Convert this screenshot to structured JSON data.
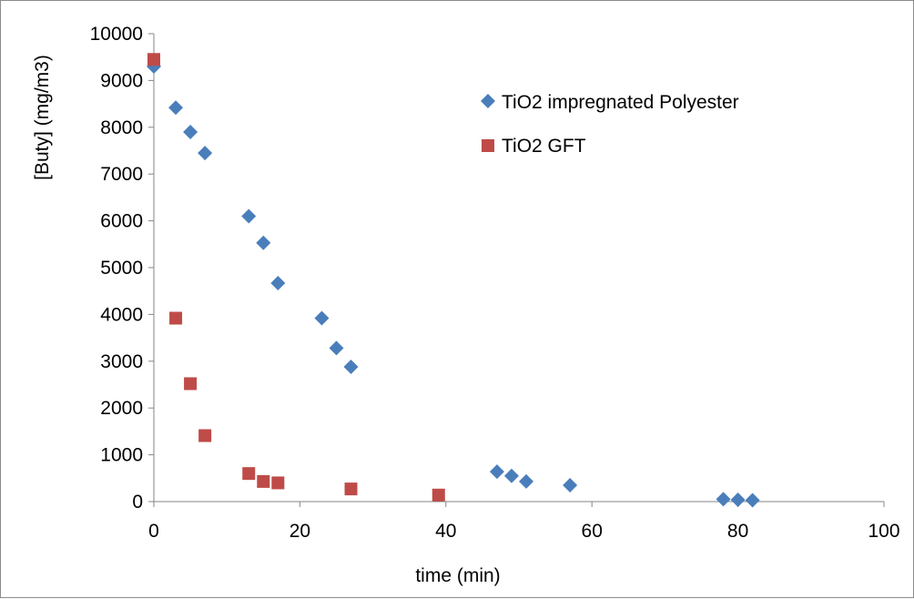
{
  "chart_data": {
    "type": "scatter",
    "title": "",
    "xlabel": "time (min)",
    "ylabel": "[Buty] (mg/m3)",
    "xlim": [
      0,
      100
    ],
    "ylim": [
      0,
      10000
    ],
    "x_ticks": [
      "0",
      "20",
      "40",
      "60",
      "80",
      "100"
    ],
    "y_ticks": [
      "0",
      "1000",
      "2000",
      "3000",
      "4000",
      "5000",
      "6000",
      "7000",
      "8000",
      "9000",
      "10000"
    ],
    "grid": false,
    "legend_position": "top-right",
    "series": [
      {
        "name": "TiO2 impregnated Polyester",
        "marker": "diamond",
        "color": "#4a7ebb",
        "points": [
          {
            "x": 0,
            "y": 9300
          },
          {
            "x": 3,
            "y": 8420
          },
          {
            "x": 5,
            "y": 7900
          },
          {
            "x": 7,
            "y": 7450
          },
          {
            "x": 13,
            "y": 6100
          },
          {
            "x": 15,
            "y": 5530
          },
          {
            "x": 17,
            "y": 4670
          },
          {
            "x": 23,
            "y": 3920
          },
          {
            "x": 25,
            "y": 3280
          },
          {
            "x": 27,
            "y": 2880
          },
          {
            "x": 47,
            "y": 640
          },
          {
            "x": 49,
            "y": 550
          },
          {
            "x": 51,
            "y": 430
          },
          {
            "x": 57,
            "y": 350
          },
          {
            "x": 78,
            "y": 50
          },
          {
            "x": 80,
            "y": 40
          },
          {
            "x": 82,
            "y": 30
          }
        ]
      },
      {
        "name": "TiO2 GFT",
        "marker": "square",
        "color": "#be4b48",
        "points": [
          {
            "x": 0,
            "y": 9450
          },
          {
            "x": 3,
            "y": 3920
          },
          {
            "x": 5,
            "y": 2520
          },
          {
            "x": 7,
            "y": 1410
          },
          {
            "x": 13,
            "y": 600
          },
          {
            "x": 15,
            "y": 430
          },
          {
            "x": 17,
            "y": 400
          },
          {
            "x": 27,
            "y": 270
          },
          {
            "x": 39,
            "y": 140
          }
        ]
      }
    ]
  }
}
